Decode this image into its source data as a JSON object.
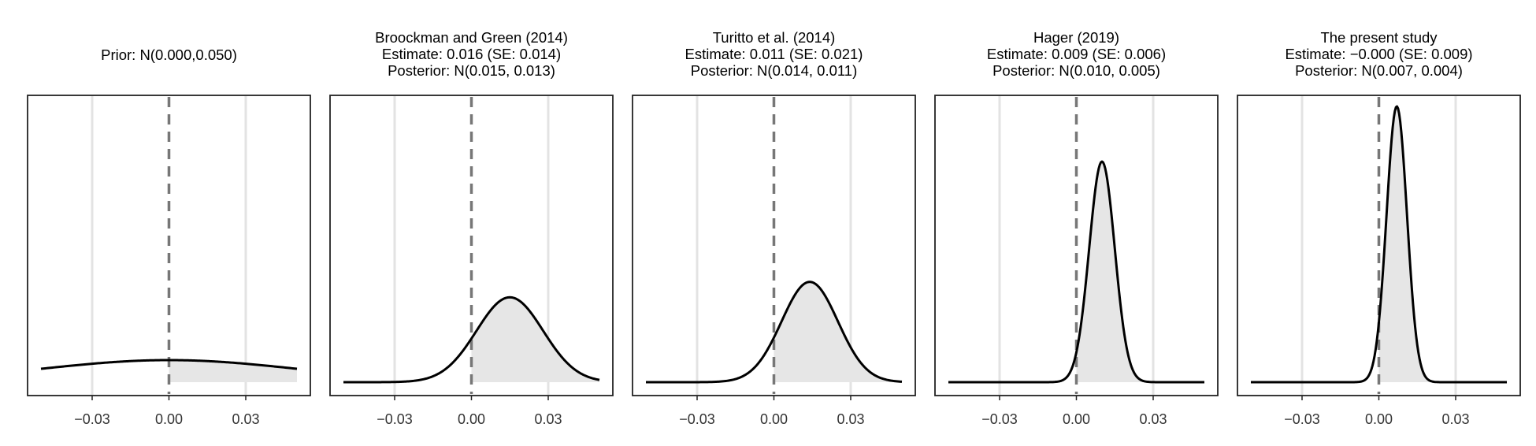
{
  "chart_data": [
    {
      "type": "area",
      "title_lines": [
        "Prior: N(0.000,0.050)"
      ],
      "distribution": {
        "mean": 0.0,
        "sd": 0.05
      },
      "shaded_region": "x >= 0",
      "xlim": [
        -0.05,
        0.05
      ],
      "xticks": [
        "−0.03",
        "0.00",
        "0.03"
      ],
      "xtick_values": [
        -0.03,
        0.0,
        0.03
      ],
      "reference_line": 0.0,
      "grid": "vertical-major"
    },
    {
      "type": "area",
      "title_lines": [
        "Broockman and Green (2014)",
        "Estimate: 0.016 (SE: 0.014)",
        "Posterior: N(0.015, 0.013)"
      ],
      "distribution": {
        "mean": 0.015,
        "sd": 0.013
      },
      "shaded_region": "x >= 0",
      "xlim": [
        -0.05,
        0.05
      ],
      "xticks": [
        "−0.03",
        "0.00",
        "0.03"
      ],
      "xtick_values": [
        -0.03,
        0.0,
        0.03
      ],
      "reference_line": 0.0,
      "grid": "vertical-major"
    },
    {
      "type": "area",
      "title_lines": [
        "Turitto et al. (2014)",
        "Estimate: 0.011 (SE: 0.021)",
        "Posterior: N(0.014, 0.011)"
      ],
      "distribution": {
        "mean": 0.014,
        "sd": 0.011
      },
      "shaded_region": "x >= 0",
      "xlim": [
        -0.05,
        0.05
      ],
      "xticks": [
        "−0.03",
        "0.00",
        "0.03"
      ],
      "xtick_values": [
        -0.03,
        0.0,
        0.03
      ],
      "reference_line": 0.0,
      "grid": "vertical-major"
    },
    {
      "type": "area",
      "title_lines": [
        "Hager (2019)",
        "Estimate: 0.009 (SE: 0.006)",
        "Posterior: N(0.010, 0.005)"
      ],
      "distribution": {
        "mean": 0.01,
        "sd": 0.005
      },
      "shaded_region": "x >= 0",
      "xlim": [
        -0.05,
        0.05
      ],
      "xticks": [
        "−0.03",
        "0.00",
        "0.03"
      ],
      "xtick_values": [
        -0.03,
        0.0,
        0.03
      ],
      "reference_line": 0.0,
      "grid": "vertical-major"
    },
    {
      "type": "area",
      "title_lines": [
        "The present study",
        "Estimate: −0.000 (SE: 0.009)",
        "Posterior: N(0.007, 0.004)"
      ],
      "distribution": {
        "mean": 0.007,
        "sd": 0.004
      },
      "shaded_region": "x >= 0",
      "xlim": [
        -0.05,
        0.05
      ],
      "xticks": [
        "−0.03",
        "0.00",
        "0.03"
      ],
      "xtick_values": [
        -0.03,
        0.0,
        0.03
      ],
      "reference_line": 0.0,
      "grid": "vertical-major"
    }
  ],
  "colors": {
    "curve": "#000000",
    "fill": "#e6e6e6",
    "reference_line": "#777777",
    "grid": "#e3e3e3",
    "frame": "#222222"
  }
}
